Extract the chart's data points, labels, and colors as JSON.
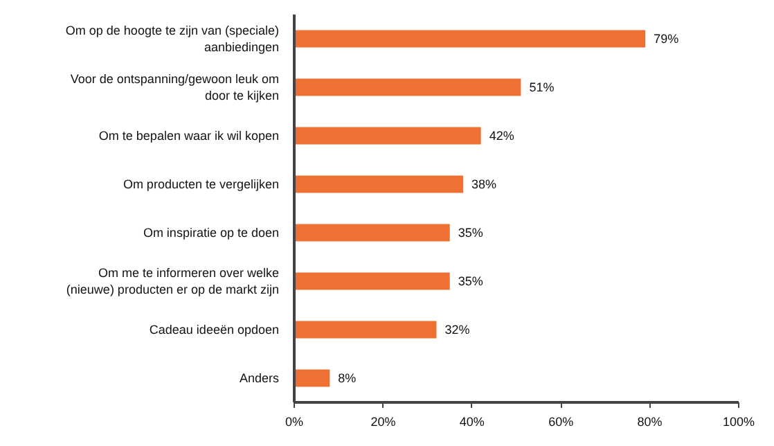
{
  "chart_data": {
    "type": "bar",
    "orientation": "horizontal",
    "categories": [
      "Om op de hoogte te zijn van (speciale) aanbiedingen",
      "Voor de ontspanning/gewoon leuk om door te kijken",
      "Om te bepalen waar ik wil kopen",
      "Om producten te vergelijken",
      "Om inspiratie op te doen",
      "Om me te informeren over welke (nieuwe) producten er op de markt zijn",
      "Cadeau ideeën opdoen",
      "Anders"
    ],
    "values": [
      79,
      51,
      42,
      38,
      35,
      35,
      32,
      8
    ],
    "value_labels": [
      "79%",
      "51%",
      "42%",
      "38%",
      "35%",
      "35%",
      "32%",
      "8%"
    ],
    "color": "#ee7033",
    "xlim": [
      0,
      100
    ],
    "xticks": [
      {
        "value": 0,
        "label": "0%"
      },
      {
        "value": 20,
        "label": "20%"
      },
      {
        "value": 40,
        "label": "40%"
      },
      {
        "value": 60,
        "label": "60%"
      },
      {
        "value": 80,
        "label": "80%"
      },
      {
        "value": 100,
        "label": "100%"
      }
    ],
    "grid": false
  }
}
